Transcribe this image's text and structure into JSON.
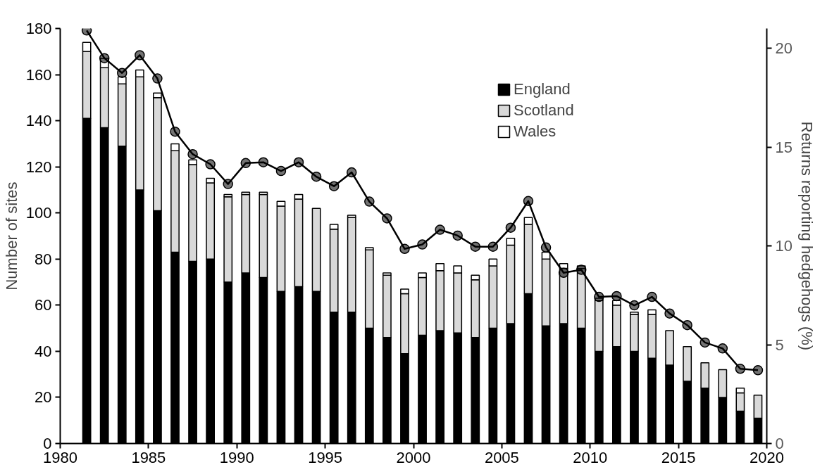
{
  "chart_data": {
    "type": "bar",
    "stacked": true,
    "ylabel": "Number of sites",
    "y2label": "Returns reporting hedgehogs (%)",
    "x": [
      1981.5,
      1982.5,
      1983.5,
      1984.5,
      1985.5,
      1986.5,
      1987.5,
      1988.5,
      1989.5,
      1990.5,
      1991.5,
      1992.5,
      1993.5,
      1994.5,
      1995.5,
      1996.5,
      1997.5,
      1998.5,
      1999.5,
      2000.5,
      2001.5,
      2002.5,
      2003.5,
      2004.5,
      2005.5,
      2006.5,
      2007.5,
      2008.5,
      2009.5,
      2010.5,
      2011.5,
      2012.5,
      2013.5,
      2014.5,
      2015.5,
      2016.5,
      2017.5,
      2018.5,
      2019.5
    ],
    "series": [
      {
        "name": "England",
        "color": "#000000",
        "values": [
          141,
          137,
          129,
          110,
          101,
          83,
          79,
          80,
          70,
          74,
          72,
          66,
          68,
          66,
          57,
          57,
          50,
          46,
          39,
          47,
          49,
          48,
          46,
          50,
          52,
          65,
          51,
          52,
          50,
          40,
          42,
          40,
          37,
          34,
          27,
          24,
          20,
          14,
          11
        ]
      },
      {
        "name": "Scotland",
        "color": "#d9d9d9",
        "values": [
          29,
          26,
          27,
          49,
          49,
          44,
          42,
          33,
          37,
          34,
          36,
          37,
          38,
          36,
          36,
          41,
          34,
          27,
          26,
          25,
          26,
          26,
          25,
          27,
          34,
          30,
          29,
          24,
          26,
          22,
          18,
          16,
          19,
          15,
          15,
          11,
          12,
          8,
          10
        ]
      },
      {
        "name": "Wales",
        "color": "#ffffff",
        "values": [
          4,
          4,
          3,
          3,
          2,
          3,
          2,
          2,
          1,
          1,
          1,
          2,
          2,
          null,
          2,
          1,
          1,
          1,
          2,
          2,
          3,
          3,
          2,
          3,
          3,
          3,
          3,
          2,
          1,
          1,
          2,
          1,
          2,
          null,
          null,
          null,
          null,
          2,
          null
        ]
      },
      {
        "type": "line",
        "axis": "y2",
        "marker": "circle",
        "color": "#000000",
        "values": [
          20.9,
          19.5,
          18.75,
          19.65,
          18.47,
          15.78,
          14.64,
          14.13,
          13.13,
          14.19,
          14.23,
          13.79,
          14.23,
          13.5,
          13.02,
          13.72,
          12.24,
          11.39,
          9.85,
          10.07,
          10.82,
          10.52,
          9.96,
          9.96,
          10.92,
          12.27,
          9.92,
          8.64,
          8.79,
          7.42,
          7.46,
          6.99,
          7.42,
          6.58,
          5.99,
          5.11,
          4.81,
          3.78,
          3.71
        ]
      }
    ],
    "xlim": [
      1980,
      2020
    ],
    "xticks": [
      1980,
      1985,
      1990,
      1995,
      2000,
      2005,
      2010,
      2015,
      2020
    ],
    "ylim": [
      0,
      180
    ],
    "yticks": [
      0,
      20,
      40,
      60,
      80,
      100,
      120,
      140,
      160,
      180
    ],
    "y2lim": [
      0,
      21
    ],
    "y2ticks": [
      0,
      5,
      10,
      15,
      20
    ],
    "legend": "top right"
  }
}
